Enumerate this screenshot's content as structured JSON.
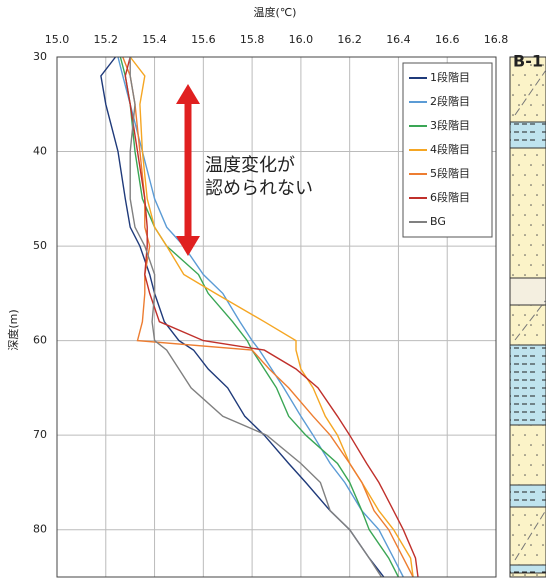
{
  "chart_data": {
    "type": "line",
    "title": "温度(℃)",
    "y_label": "深度(m)",
    "xlim": [
      15.0,
      16.8
    ],
    "xticks": [
      {
        "value": 15.0,
        "label": "15.0"
      },
      15.2,
      15.4,
      15.6,
      15.8,
      {
        "value": 16.0,
        "label": "16.0"
      },
      16.2,
      16.4,
      16.6,
      16.8
    ],
    "ylim": [
      30,
      85
    ],
    "yticks": [
      30,
      40,
      50,
      60,
      70,
      80
    ],
    "y_inverted": true,
    "grid": true,
    "legend": "upper right",
    "annotations": [
      "温度変化が",
      "認められない"
    ],
    "column_label": "B-1",
    "series": [
      {
        "name": "1段階目",
        "color": "#1f3a7a",
        "x": [
          15.24,
          15.18,
          15.2,
          15.25,
          15.28,
          15.3,
          15.34,
          15.38,
          15.4,
          15.44,
          15.5,
          15.56,
          15.62,
          15.7,
          15.77,
          15.85,
          15.95,
          16.02,
          16.12,
          16.2,
          16.28,
          16.34
        ],
        "values": [
          30,
          32,
          35,
          40,
          45,
          48,
          50,
          53,
          55,
          58,
          60,
          61,
          63,
          65,
          68,
          70,
          73,
          75,
          78,
          80,
          83,
          85
        ]
      },
      {
        "name": "2段階目",
        "color": "#5b9bd5",
        "x": [
          15.25,
          15.27,
          15.3,
          15.35,
          15.4,
          15.45,
          15.52,
          15.6,
          15.68,
          15.75,
          15.8,
          15.83,
          15.88,
          15.93,
          16.0,
          16.05,
          16.12,
          16.18,
          16.25,
          16.32,
          16.38,
          16.42
        ],
        "values": [
          30,
          32,
          35,
          40,
          45,
          48,
          50,
          53,
          55,
          58,
          60,
          61,
          63,
          65,
          68,
          70,
          73,
          75,
          78,
          80,
          83,
          85
        ]
      },
      {
        "name": "3段階目",
        "color": "#3aa655",
        "x": [
          15.26,
          15.28,
          15.3,
          15.32,
          15.35,
          15.4,
          15.45,
          15.58,
          15.62,
          15.72,
          15.78,
          15.8,
          15.85,
          15.9,
          15.95,
          16.02,
          16.15,
          16.2,
          16.25,
          16.28,
          16.36,
          16.4
        ],
        "values": [
          30,
          32,
          35,
          40,
          45,
          48,
          50,
          53,
          55,
          58,
          60,
          61,
          63,
          65,
          68,
          70,
          73,
          75,
          78,
          80,
          83,
          85
        ]
      },
      {
        "name": "4段階目",
        "color": "#f5a623",
        "x": [
          15.3,
          15.36,
          15.34,
          15.35,
          15.37,
          15.4,
          15.45,
          15.52,
          15.65,
          15.85,
          15.98,
          15.98,
          16.0,
          16.05,
          16.1,
          16.15,
          16.2,
          16.25,
          16.32,
          16.38,
          16.45,
          16.46
        ],
        "values": [
          30,
          32,
          35,
          40,
          45,
          48,
          50,
          53,
          55,
          58,
          60,
          61,
          63,
          65,
          68,
          70,
          73,
          75,
          78,
          80,
          83,
          85
        ]
      },
      {
        "name": "5段階目",
        "color": "#ed7d31",
        "x": [
          15.27,
          15.3,
          15.32,
          15.34,
          15.36,
          15.36,
          15.38,
          15.36,
          15.36,
          15.35,
          15.33,
          15.8,
          15.87,
          15.95,
          16.05,
          16.12,
          16.2,
          16.25,
          16.3,
          16.36,
          16.42,
          16.46
        ],
        "values": [
          30,
          32,
          35,
          40,
          45,
          48,
          50,
          53,
          55,
          58,
          60,
          61,
          63,
          65,
          68,
          70,
          73,
          75,
          78,
          80,
          83,
          85
        ]
      },
      {
        "name": "6段階目",
        "color": "#c0302b",
        "x": [
          15.3,
          15.28,
          15.3,
          15.33,
          15.36,
          15.37,
          15.37,
          15.36,
          15.38,
          15.42,
          15.6,
          15.85,
          15.98,
          16.07,
          16.15,
          16.2,
          16.27,
          16.32,
          16.38,
          16.42,
          16.47,
          16.48
        ],
        "values": [
          30,
          32,
          35,
          40,
          45,
          48,
          50,
          53,
          55,
          58,
          60,
          61,
          63,
          65,
          68,
          70,
          73,
          75,
          78,
          80,
          83,
          85
        ]
      },
      {
        "name": "BG",
        "color": "#808080",
        "x": [
          15.3,
          15.3,
          15.32,
          15.3,
          15.3,
          15.32,
          15.36,
          15.4,
          15.4,
          15.39,
          15.4,
          15.45,
          15.5,
          15.55,
          15.68,
          15.86,
          16.0,
          16.08,
          16.12,
          16.2,
          16.28,
          16.33
        ],
        "values": [
          30,
          32,
          35,
          40,
          45,
          48,
          50,
          53,
          55,
          58,
          60,
          61,
          63,
          65,
          68,
          70,
          73,
          75,
          78,
          80,
          83,
          85
        ]
      }
    ]
  }
}
